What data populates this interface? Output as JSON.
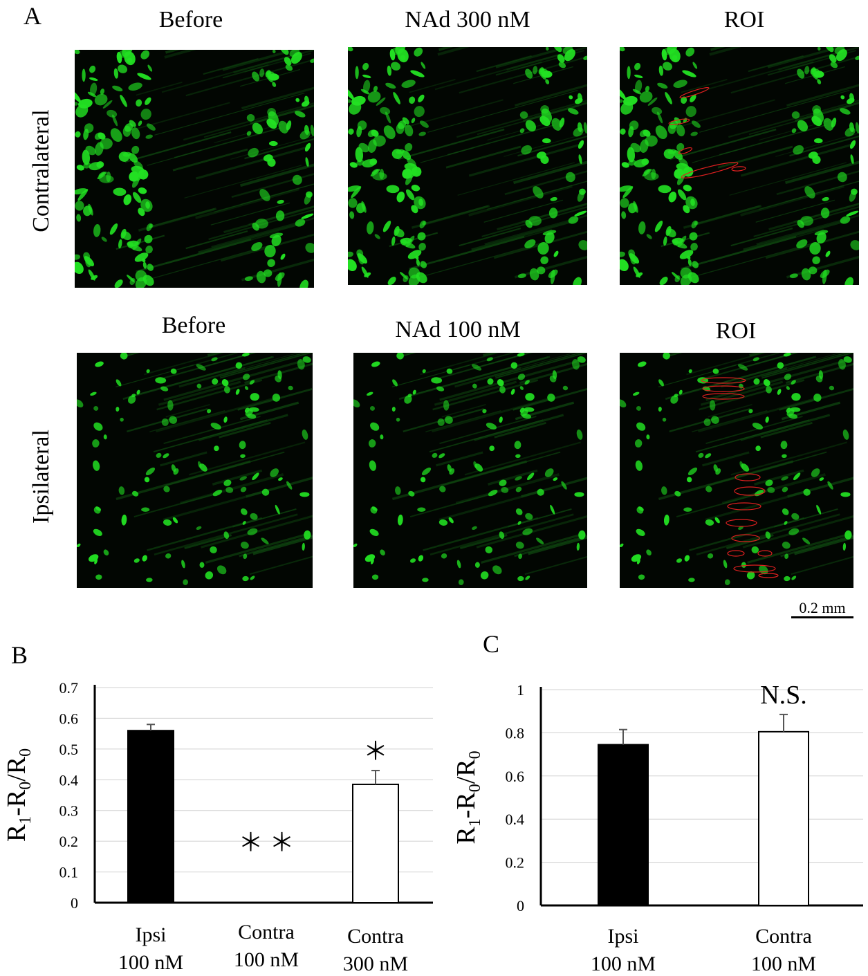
{
  "panel_a": {
    "letter": "A",
    "rows": [
      {
        "label": "Contralateral",
        "columns": [
          {
            "title": "Before"
          },
          {
            "title": "NAd 300 nM"
          },
          {
            "title": "ROI"
          }
        ]
      },
      {
        "label": "Ipsilateral",
        "columns": [
          {
            "title": "Before"
          },
          {
            "title": "NAd 100 nM"
          },
          {
            "title": "ROI"
          }
        ]
      }
    ],
    "scale_bar": "0.2 mm",
    "colors": {
      "fluorescence": "#22e022",
      "roi_outline": "#e02020",
      "background": "#020602"
    }
  },
  "chart_data": [
    {
      "letter": "B",
      "type": "bar",
      "categories": [
        [
          "Ipsi",
          "100 nM"
        ],
        [
          "Contra",
          "100 nM"
        ],
        [
          "Contra",
          "300 nM"
        ]
      ],
      "values": [
        0.56,
        0.0,
        0.385
      ],
      "errors": [
        0.02,
        0.0,
        0.045
      ],
      "fills": [
        "#000000",
        "#ffffff",
        "#ffffff"
      ],
      "annotations": [
        "",
        "＊ ＊",
        "＊"
      ],
      "ylabel": "R1-R0/R0",
      "ylim": [
        0,
        0.7
      ],
      "yticks": [
        "0",
        "0.1",
        "0.2",
        "0.3",
        "0.4",
        "0.5",
        "0.6",
        "0.7"
      ],
      "grid": true
    },
    {
      "letter": "C",
      "type": "bar",
      "categories": [
        [
          "Ipsi",
          "100 nM"
        ],
        [
          "Contra",
          "100 nM"
        ]
      ],
      "values": [
        0.745,
        0.805
      ],
      "errors": [
        0.07,
        0.08
      ],
      "fills": [
        "#000000",
        "#ffffff"
      ],
      "annotations": [
        "",
        "N.S."
      ],
      "ylabel": "R1-R0/R0",
      "ylim": [
        0,
        1
      ],
      "yticks": [
        "0",
        "0.2",
        "0.4",
        "0.6",
        "0.8",
        "1"
      ],
      "grid": true
    }
  ]
}
